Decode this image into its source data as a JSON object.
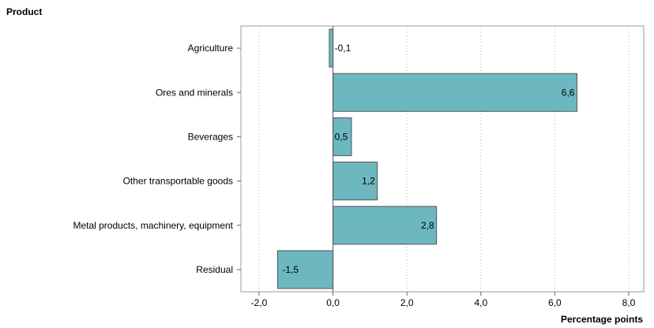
{
  "chart_data": {
    "type": "bar",
    "orientation": "horizontal",
    "ylabel": "Product",
    "xlabel": "Percentage points",
    "categories": [
      "Agriculture",
      "Ores and minerals",
      "Beverages",
      "Other transportable goods",
      "Metal products, machinery, equipment",
      "Residual"
    ],
    "values": [
      -0.1,
      6.6,
      0.5,
      1.2,
      2.8,
      -1.5
    ],
    "data_labels": [
      "-0,1",
      "6,6",
      "0,5",
      "1,2",
      "2,8",
      "-1,5"
    ],
    "xlim": [
      -2.0,
      8.0
    ],
    "xticks": [
      -2.0,
      0.0,
      2.0,
      4.0,
      6.0,
      8.0
    ],
    "xtick_labels": [
      "-2,0",
      "0,0",
      "2,0",
      "4,0",
      "6,0",
      "8,0"
    ],
    "grid": "vertical dotted",
    "bar_color": "#6db8c0",
    "bar_edge_color": "#555555"
  }
}
